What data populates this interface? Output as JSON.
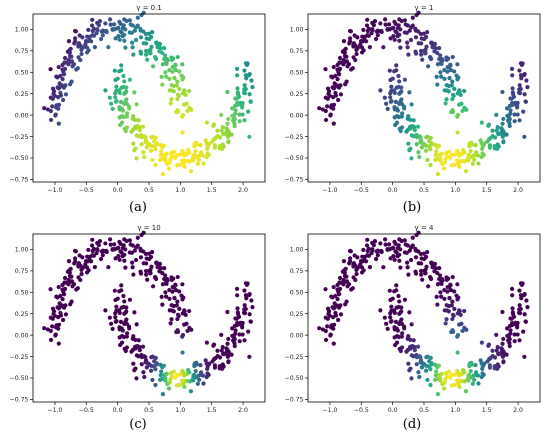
{
  "captions": [
    "(a)",
    "(b)",
    "(c)",
    "(d)"
  ],
  "chart_data": [
    {
      "type": "scatter",
      "title": "γ = 0.1",
      "xlabel": "",
      "ylabel": "",
      "xlim": [
        -1.35,
        2.35
      ],
      "ylim": [
        -0.78,
        1.18
      ],
      "xticks": [
        -1.0,
        -0.5,
        0.0,
        0.5,
        1.0,
        1.5,
        2.0
      ],
      "yticks": [
        -0.75,
        -0.5,
        -0.25,
        0.0,
        0.25,
        0.5,
        0.75,
        1.0
      ],
      "xtick_labels": [
        "−1.0",
        "−0.5",
        "0.0",
        "0.5",
        "1.0",
        "1.5",
        "2.0"
      ],
      "ytick_labels": [
        "−0.75",
        "−0.50",
        "−0.25",
        "0.00",
        "0.25",
        "0.50",
        "0.75",
        "1.00"
      ],
      "colormap": "viridis",
      "gamma": 0.1,
      "center": [
        0.95,
        -0.5
      ],
      "grid": false
    },
    {
      "type": "scatter",
      "title": "γ = 1",
      "xlabel": "",
      "ylabel": "",
      "xlim": [
        -1.35,
        2.35
      ],
      "ylim": [
        -0.78,
        1.18
      ],
      "xticks": [
        -1.0,
        -0.5,
        0.0,
        0.5,
        1.0,
        1.5,
        2.0
      ],
      "yticks": [
        -0.75,
        -0.5,
        -0.25,
        0.0,
        0.25,
        0.5,
        0.75,
        1.0
      ],
      "xtick_labels": [
        "−1.0",
        "−0.5",
        "0.0",
        "0.5",
        "1.0",
        "1.5",
        "2.0"
      ],
      "ytick_labels": [
        "−0.75",
        "−0.50",
        "−0.25",
        "0.00",
        "0.25",
        "0.50",
        "0.75",
        "1.00"
      ],
      "colormap": "viridis",
      "gamma": 1,
      "center": [
        0.95,
        -0.5
      ],
      "grid": false
    },
    {
      "type": "scatter",
      "title": "γ = 10",
      "xlabel": "",
      "ylabel": "",
      "xlim": [
        -1.35,
        2.35
      ],
      "ylim": [
        -0.78,
        1.18
      ],
      "xticks": [
        -1.0,
        -0.5,
        0.0,
        0.5,
        1.0,
        1.5,
        2.0
      ],
      "yticks": [
        -0.75,
        -0.5,
        -0.25,
        0.0,
        0.25,
        0.5,
        0.75,
        1.0
      ],
      "xtick_labels": [
        "−1.0",
        "−0.5",
        "0.0",
        "0.5",
        "1.0",
        "1.5",
        "2.0"
      ],
      "ytick_labels": [
        "−0.75",
        "−0.50",
        "−0.25",
        "0.00",
        "0.25",
        "0.50",
        "0.75",
        "1.00"
      ],
      "colormap": "viridis",
      "gamma": 10,
      "center": [
        0.95,
        -0.5
      ],
      "grid": false
    },
    {
      "type": "scatter",
      "title": "γ = 4",
      "xlabel": "",
      "ylabel": "",
      "xlim": [
        -1.35,
        2.35
      ],
      "ylim": [
        -0.78,
        1.18
      ],
      "xticks": [
        -1.0,
        -0.5,
        0.0,
        0.5,
        1.0,
        1.5,
        2.0
      ],
      "yticks": [
        -0.75,
        -0.5,
        -0.25,
        0.0,
        0.25,
        0.5,
        0.75,
        1.0
      ],
      "xtick_labels": [
        "−1.0",
        "−0.5",
        "0.0",
        "0.5",
        "1.0",
        "1.5",
        "2.0"
      ],
      "ytick_labels": [
        "−0.75",
        "−0.50",
        "−0.25",
        "0.00",
        "0.25",
        "0.50",
        "0.75",
        "1.00"
      ],
      "colormap": "viridis",
      "gamma": 4,
      "center": [
        0.95,
        -0.5
      ],
      "grid": false
    }
  ]
}
